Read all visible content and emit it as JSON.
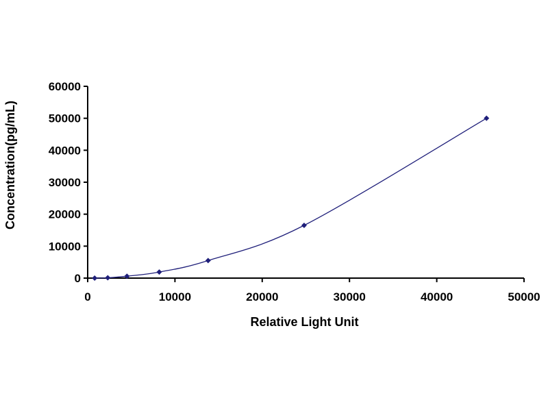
{
  "chart_data": {
    "type": "scatter",
    "title": "",
    "xlabel": "Relative Light Unit",
    "ylabel": "Concentration(pg/mL)",
    "xlim": [
      0,
      50000
    ],
    "ylim": [
      0,
      60000
    ],
    "xticks": [
      0,
      10000,
      20000,
      30000,
      40000,
      50000
    ],
    "yticks": [
      0,
      10000,
      20000,
      30000,
      40000,
      50000,
      60000
    ],
    "xtick_labels": [
      "0",
      "10000",
      "20000",
      "30000",
      "40000",
      "50000"
    ],
    "ytick_labels": [
      "0",
      "10000",
      "20000",
      "30000",
      "40000",
      "50000",
      "60000"
    ],
    "grid": false,
    "legend": "none",
    "series": [
      {
        "marker": "diamond",
        "smooth_line": true,
        "color": "#1f1f7a",
        "x": [
          800,
          2300,
          4500,
          8200,
          13800,
          24800,
          45700
        ],
        "y": [
          0,
          100,
          600,
          1900,
          5500,
          16500,
          50000
        ]
      }
    ]
  }
}
